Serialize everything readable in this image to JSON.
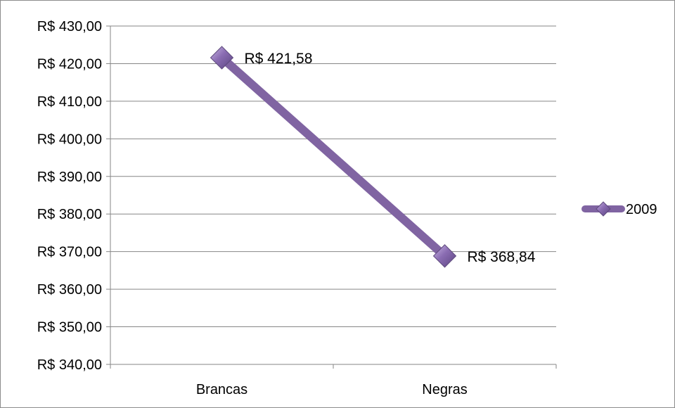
{
  "chart_data": {
    "type": "line",
    "categories": [
      "Brancas",
      "Negras"
    ],
    "series": [
      {
        "name": "2009",
        "values": [
          421.58,
          368.84
        ],
        "value_labels": [
          "R$ 421,58",
          "R$ 368,84"
        ],
        "color": "#8064a2",
        "marker": "diamond"
      }
    ],
    "ylim": [
      340,
      430
    ],
    "ytick_labels": [
      "R$ 340,00",
      "R$ 350,00",
      "R$ 360,00",
      "R$ 370,00",
      "R$ 380,00",
      "R$ 390,00",
      "R$ 400,00",
      "R$ 410,00",
      "R$ 420,00",
      "R$ 430,00"
    ],
    "yticks": [
      340,
      350,
      360,
      370,
      380,
      390,
      400,
      410,
      420,
      430
    ],
    "grid": true,
    "legend_position": "right",
    "gridline_color": "#868686"
  }
}
